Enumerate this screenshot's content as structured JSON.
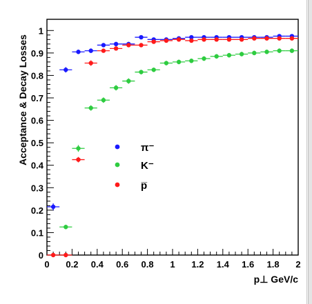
{
  "chart_data": {
    "type": "scatter",
    "title": "",
    "xlabel": "p⊥ GeV/c",
    "ylabel": "Acceptance & Decay Losses",
    "xlim": [
      0,
      2
    ],
    "ylim": [
      0,
      1.05
    ],
    "grid": false,
    "legend_position": "center-left",
    "x_ticks": [
      "0",
      "0.2",
      "0.4",
      "0.6",
      "0.8",
      "1",
      "1.2",
      "1.4",
      "1.6",
      "1.8",
      "2"
    ],
    "y_ticks": [
      "0",
      "0.1",
      "0.2",
      "0.3",
      "0.4",
      "0.5",
      "0.6",
      "0.7",
      "0.8",
      "0.9",
      "1"
    ],
    "x_tick_values": [
      0,
      0.2,
      0.4,
      0.6,
      0.8,
      1.0,
      1.2,
      1.4,
      1.6,
      1.8,
      2.0
    ],
    "y_tick_values": [
      0,
      0.1,
      0.2,
      0.3,
      0.4,
      0.5,
      0.6,
      0.7,
      0.8,
      0.9,
      1.0
    ],
    "series": [
      {
        "name": "π⁻",
        "color": "#1a1aff",
        "x": [
          0.05,
          0.15,
          0.25,
          0.35,
          0.45,
          0.55,
          0.65,
          0.75,
          0.85,
          0.95,
          1.05,
          1.15,
          1.25,
          1.35,
          1.45,
          1.55,
          1.65,
          1.75,
          1.85,
          1.95
        ],
        "y": [
          0.215,
          0.825,
          0.905,
          0.91,
          0.935,
          0.94,
          0.94,
          0.97,
          0.96,
          0.96,
          0.965,
          0.97,
          0.97,
          0.97,
          0.97,
          0.97,
          0.97,
          0.97,
          0.975,
          0.975
        ],
        "yerr": [
          0.015,
          0.012,
          0.01,
          0.01,
          0.008,
          0.008,
          0.008,
          0.007,
          0.007,
          0.007,
          0.007,
          0.007,
          0.007,
          0.007,
          0.007,
          0.007,
          0.007,
          0.007,
          0.007,
          0.007
        ]
      },
      {
        "name": "K⁻",
        "color": "#2ecc40",
        "x": [
          0.15,
          0.25,
          0.35,
          0.45,
          0.55,
          0.65,
          0.75,
          0.85,
          0.95,
          1.05,
          1.15,
          1.25,
          1.35,
          1.45,
          1.55,
          1.65,
          1.75,
          1.85,
          1.95
        ],
        "y": [
          0.125,
          0.475,
          0.655,
          0.69,
          0.745,
          0.775,
          0.815,
          0.825,
          0.855,
          0.86,
          0.865,
          0.875,
          0.885,
          0.89,
          0.895,
          0.9,
          0.905,
          0.91,
          0.91
        ],
        "yerr": [
          0.01,
          0.015,
          0.012,
          0.012,
          0.012,
          0.012,
          0.01,
          0.01,
          0.01,
          0.01,
          0.01,
          0.01,
          0.01,
          0.01,
          0.01,
          0.01,
          0.01,
          0.01,
          0.01
        ]
      },
      {
        "name": "p̅",
        "color": "#ff1a1a",
        "x": [
          0.05,
          0.15,
          0.25,
          0.35,
          0.45,
          0.55,
          0.65,
          0.75,
          0.85,
          0.95,
          1.05,
          1.15,
          1.25,
          1.35,
          1.45,
          1.55,
          1.65,
          1.75,
          1.85,
          1.95
        ],
        "y": [
          0.0,
          0.0,
          0.425,
          0.855,
          0.91,
          0.92,
          0.935,
          0.935,
          0.95,
          0.955,
          0.96,
          0.955,
          0.96,
          0.96,
          0.96,
          0.96,
          0.965,
          0.965,
          0.965,
          0.965
        ],
        "yerr": [
          0.0,
          0.0,
          0.012,
          0.012,
          0.008,
          0.008,
          0.008,
          0.008,
          0.007,
          0.007,
          0.007,
          0.007,
          0.007,
          0.007,
          0.007,
          0.007,
          0.007,
          0.007,
          0.007,
          0.007
        ]
      }
    ]
  }
}
